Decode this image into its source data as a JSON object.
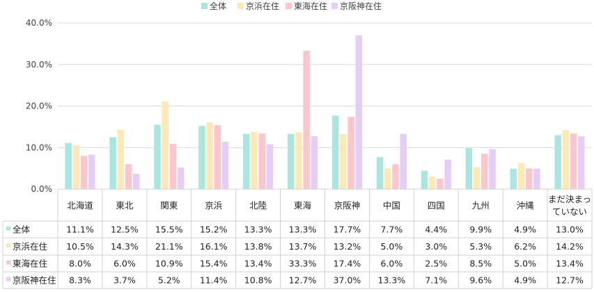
{
  "chart_data": {
    "type": "bar",
    "categories": [
      "北海道",
      "東北",
      "関東",
      "京浜",
      "北陸",
      "東海",
      "京阪神",
      "中国",
      "四国",
      "九州",
      "沖縄",
      "まだ決まっていない"
    ],
    "category_lines": [
      [
        "北海道"
      ],
      [
        "東北"
      ],
      [
        "関東"
      ],
      [
        "京浜"
      ],
      [
        "北陸"
      ],
      [
        "東海"
      ],
      [
        "京阪神"
      ],
      [
        "中国"
      ],
      [
        "四国"
      ],
      [
        "九州"
      ],
      [
        "沖縄"
      ],
      [
        "まだ決まっ",
        "ていない"
      ]
    ],
    "series": [
      {
        "name": "全体",
        "color": "#a8e6df",
        "values": [
          11.1,
          12.5,
          15.5,
          15.2,
          13.3,
          13.3,
          17.7,
          7.7,
          4.4,
          9.9,
          4.9,
          13.0
        ]
      },
      {
        "name": "京浜在住",
        "color": "#fde9b8",
        "values": [
          10.5,
          14.3,
          21.1,
          16.1,
          13.8,
          13.7,
          13.2,
          5.0,
          3.0,
          5.3,
          6.2,
          14.2
        ]
      },
      {
        "name": "東海在住",
        "color": "#fbc7cc",
        "values": [
          8.0,
          6.0,
          10.9,
          15.4,
          13.4,
          33.3,
          17.4,
          6.0,
          2.5,
          8.5,
          5.0,
          13.4
        ]
      },
      {
        "name": "京阪神在住",
        "color": "#e5cdf5",
        "values": [
          8.3,
          3.7,
          5.2,
          11.4,
          10.8,
          12.7,
          37.0,
          13.3,
          7.1,
          9.6,
          4.9,
          12.7
        ]
      }
    ],
    "table_values": [
      [
        "11.1%",
        "12.5%",
        "15.5%",
        "15.2%",
        "13.3%",
        "13.3%",
        "17.7%",
        "7.7%",
        "4.4%",
        "9.9%",
        "4.9%",
        "13.0%"
      ],
      [
        "10.5%",
        "14.3%",
        "21.1%",
        "16.1%",
        "13.8%",
        "13.7%",
        "13.2%",
        "5.0%",
        "3.0%",
        "5.3%",
        "6.2%",
        "14.2%"
      ],
      [
        "8.0%",
        "6.0%",
        "10.9%",
        "15.4%",
        "13.4%",
        "33.3%",
        "17.4%",
        "6.0%",
        "2.5%",
        "8.5%",
        "5.0%",
        "13.4%"
      ],
      [
        "8.3%",
        "3.7%",
        "5.2%",
        "11.4%",
        "10.8%",
        "12.7%",
        "37.0%",
        "13.3%",
        "7.1%",
        "9.6%",
        "4.9%",
        "12.7%"
      ]
    ],
    "ylim": [
      0,
      40
    ],
    "yticks": [
      0,
      10,
      20,
      30,
      40
    ],
    "ytick_labels": [
      "0.0%",
      "10.0%",
      "20.0%",
      "30.0%",
      "40.0%"
    ],
    "grid": true,
    "legend_position": "top-center",
    "title": "",
    "xlabel": "",
    "ylabel": ""
  }
}
